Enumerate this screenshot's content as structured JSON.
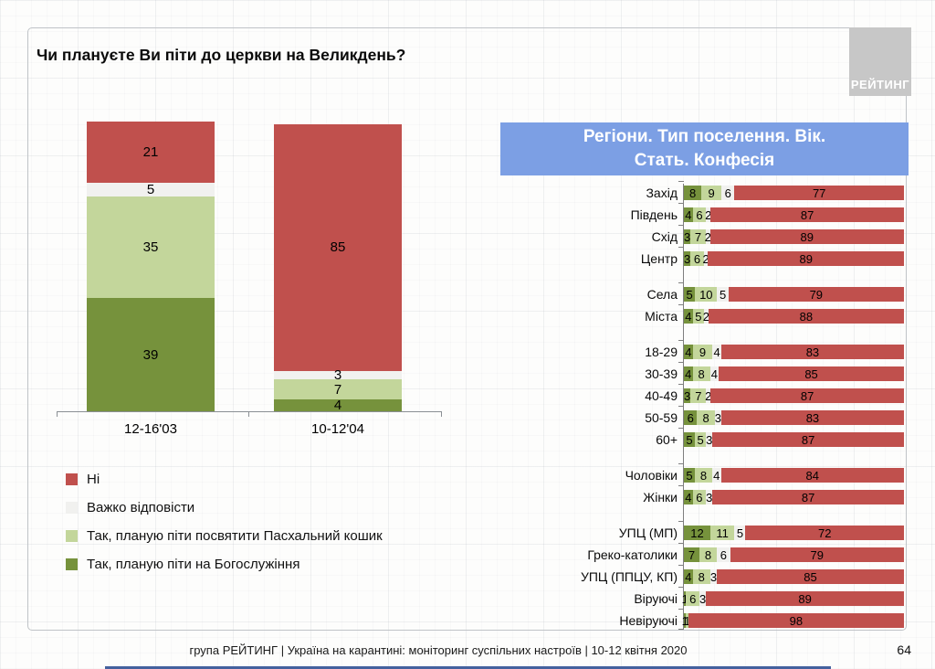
{
  "page": {
    "title": "Чи плануєте Ви піти до церкви на Великдень?",
    "logo_text": "РЕЙТИНГ",
    "footer_text": "група РЕЙТИНГ | Україна на карантині: моніторинг суспільних настроїв  | 10-12 квітня  2020",
    "page_number": "64"
  },
  "colors": {
    "no": "#C0504D",
    "hard": "#F1F1EF",
    "basket": "#C3D69B",
    "service": "#76923C",
    "header_bg": "#7C9FE4",
    "header_text": "#FFFFFF",
    "bottom_bar": "#44619E",
    "logo_bg": "#C7C7C7",
    "axis": "#7F7F7F"
  },
  "legend": [
    {
      "key": "no",
      "label": "Ні"
    },
    {
      "key": "hard",
      "label": "Важко відповісти"
    },
    {
      "key": "basket",
      "label": "Так, планую піти посвятити Пасхальний кошик"
    },
    {
      "key": "service",
      "label": "Так, планую піти на Богослужіння"
    }
  ],
  "chart_data": [
    {
      "type": "bar",
      "orientation": "vertical",
      "stacked": true,
      "title": "Чи плануєте Ви піти до церкви на Великдень?",
      "categories": [
        "12-16'03",
        "10-12'04"
      ],
      "series": [
        {
          "key": "service",
          "name": "Так, планую піти на Богослужіння",
          "values": [
            39,
            4
          ]
        },
        {
          "key": "basket",
          "name": "Так, планую піти посвятити Пасхальний кошик",
          "values": [
            35,
            7
          ]
        },
        {
          "key": "hard",
          "name": "Важко відповісти",
          "values": [
            5,
            3
          ]
        },
        {
          "key": "no",
          "name": "Ні",
          "values": [
            21,
            85
          ]
        }
      ],
      "ylim": [
        0,
        100
      ],
      "grid": false,
      "legend_position": "bottom-left"
    },
    {
      "type": "bar",
      "orientation": "horizontal",
      "stacked": true,
      "title": "Регіони. Тип поселення. Вік. Стать. Конфесія",
      "title_lines": [
        "Регіони. Тип поселення. Вік.",
        "Стать. Конфесія"
      ],
      "series_keys": [
        "service",
        "basket",
        "hard",
        "no"
      ],
      "series_names": [
        "Так, планую піти на Богослужіння",
        "Так, планую піти посвятити Пасхальний кошик",
        "Важко відповісти",
        "Ні"
      ],
      "xlim": [
        0,
        100
      ],
      "groups": [
        {
          "name": "regions",
          "rows": [
            {
              "label": "Захід",
              "values": [
                8,
                9,
                6,
                77
              ]
            },
            {
              "label": "Південь",
              "values": [
                4,
                6,
                2,
                87
              ]
            },
            {
              "label": "Схід",
              "values": [
                3,
                7,
                2,
                89
              ]
            },
            {
              "label": "Центр",
              "values": [
                3,
                6,
                2,
                89
              ]
            }
          ]
        },
        {
          "name": "settlement-type",
          "rows": [
            {
              "label": "Села",
              "values": [
                5,
                10,
                5,
                79
              ]
            },
            {
              "label": "Міста",
              "values": [
                4,
                5,
                2,
                88
              ]
            }
          ]
        },
        {
          "name": "age",
          "rows": [
            {
              "label": "18-29",
              "values": [
                4,
                9,
                4,
                83
              ]
            },
            {
              "label": "30-39",
              "values": [
                4,
                8,
                4,
                85
              ]
            },
            {
              "label": "40-49",
              "values": [
                3,
                7,
                2,
                87
              ]
            },
            {
              "label": "50-59",
              "values": [
                6,
                8,
                3,
                83
              ]
            },
            {
              "label": "60+",
              "values": [
                5,
                5,
                3,
                87
              ]
            }
          ]
        },
        {
          "name": "gender",
          "rows": [
            {
              "label": "Чоловіки",
              "values": [
                5,
                8,
                4,
                84
              ]
            },
            {
              "label": "Жінки",
              "values": [
                4,
                6,
                3,
                87
              ]
            }
          ]
        },
        {
          "name": "confession",
          "rows": [
            {
              "label": "УПЦ (МП)",
              "values": [
                12,
                11,
                5,
                72
              ]
            },
            {
              "label": "Греко-католики",
              "values": [
                7,
                8,
                6,
                79
              ]
            },
            {
              "label": "УПЦ (ППЦУ, КП)",
              "values": [
                4,
                8,
                3,
                85
              ]
            },
            {
              "label": "Віруючі",
              "values": [
                1,
                6,
                3,
                89
              ]
            },
            {
              "label": "Невіруючі",
              "values": [
                1,
                1,
                0,
                98
              ]
            }
          ]
        }
      ]
    }
  ]
}
